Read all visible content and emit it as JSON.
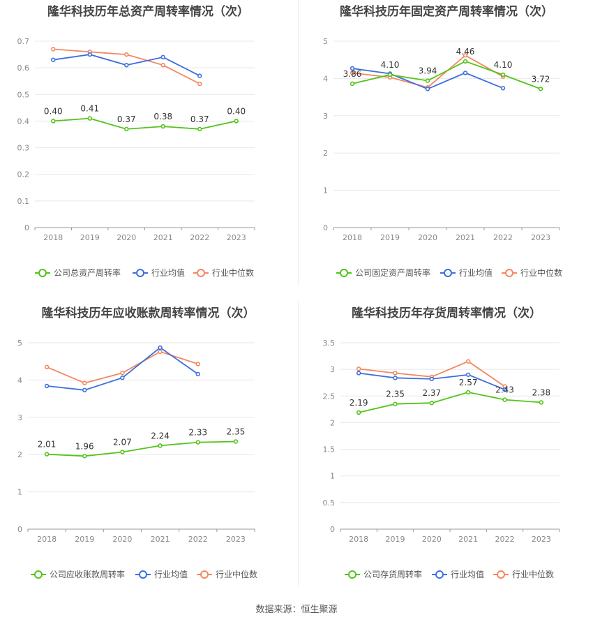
{
  "footer": "数据来源：恒生聚源",
  "colors": {
    "company": "#52c41a",
    "avg": "#3b6fe0",
    "median": "#f5875f",
    "grid": "#e8e8e8",
    "axis": "#888888"
  },
  "chart_data": [
    {
      "type": "line",
      "title": "隆华科技历年总资产周转率情况（次）",
      "categories": [
        "2018",
        "2019",
        "2020",
        "2021",
        "2022",
        "2023"
      ],
      "yticks": [
        "0",
        "0.1",
        "0.2",
        "0.3",
        "0.4",
        "0.5",
        "0.6",
        "0.7"
      ],
      "ylim": [
        0,
        0.7
      ],
      "series": [
        {
          "name": "公司总资产周转率",
          "values": [
            0.4,
            0.41,
            0.37,
            0.38,
            0.37,
            0.4
          ],
          "labels": [
            "0.40",
            "0.41",
            "0.37",
            "0.38",
            "0.37",
            "0.40"
          ]
        },
        {
          "name": "行业均值",
          "values": [
            0.63,
            0.65,
            0.61,
            0.64,
            0.57,
            null
          ]
        },
        {
          "name": "行业中位数",
          "values": [
            0.67,
            0.66,
            0.65,
            0.61,
            0.54,
            null
          ]
        }
      ]
    },
    {
      "type": "line",
      "title": "隆华科技历年固定资产周转率情况（次）",
      "categories": [
        "2018",
        "2019",
        "2020",
        "2021",
        "2022",
        "2023"
      ],
      "yticks": [
        "0",
        "1",
        "2",
        "3",
        "4",
        "5"
      ],
      "ylim": [
        0,
        5
      ],
      "series": [
        {
          "name": "公司固定资产周转率",
          "values": [
            3.86,
            4.1,
            3.94,
            4.46,
            4.1,
            3.72
          ],
          "labels": [
            "3.86",
            "4.10",
            "3.94",
            "4.46",
            "4.10",
            "3.72"
          ]
        },
        {
          "name": "行业均值",
          "values": [
            4.27,
            4.13,
            3.72,
            4.15,
            3.74,
            null
          ]
        },
        {
          "name": "行业中位数",
          "values": [
            4.15,
            4.03,
            3.76,
            4.62,
            4.05,
            null
          ]
        }
      ]
    },
    {
      "type": "line",
      "title": "隆华科技历年应收账款周转率情况（次）",
      "categories": [
        "2018",
        "2019",
        "2020",
        "2021",
        "2022",
        "2023"
      ],
      "yticks": [
        "0",
        "1",
        "2",
        "3",
        "4",
        "5"
      ],
      "ylim": [
        0,
        5
      ],
      "series": [
        {
          "name": "公司应收账款周转率",
          "values": [
            2.01,
            1.96,
            2.07,
            2.24,
            2.33,
            2.35
          ],
          "labels": [
            "2.01",
            "1.96",
            "2.07",
            "2.24",
            "2.33",
            "2.35"
          ]
        },
        {
          "name": "行业均值",
          "values": [
            3.84,
            3.73,
            4.06,
            4.87,
            4.16,
            null
          ]
        },
        {
          "name": "行业中位数",
          "values": [
            4.35,
            3.92,
            4.19,
            4.76,
            4.43,
            null
          ]
        }
      ]
    },
    {
      "type": "line",
      "title": "隆华科技历年存货周转率情况（次）",
      "categories": [
        "2018",
        "2019",
        "2020",
        "2021",
        "2022",
        "2023"
      ],
      "yticks": [
        "0",
        "0.5",
        "1",
        "1.5",
        "2",
        "2.5",
        "3",
        "3.5"
      ],
      "ylim": [
        0,
        3.5
      ],
      "series": [
        {
          "name": "公司存货周转率",
          "values": [
            2.19,
            2.35,
            2.37,
            2.57,
            2.43,
            2.38
          ],
          "labels": [
            "2.19",
            "2.35",
            "2.37",
            "2.57",
            "2.43",
            "2.38"
          ]
        },
        {
          "name": "行业均值",
          "values": [
            2.93,
            2.84,
            2.82,
            2.9,
            2.62,
            null
          ]
        },
        {
          "name": "行业中位数",
          "values": [
            3.01,
            2.93,
            2.86,
            3.15,
            2.68,
            null
          ]
        }
      ]
    }
  ]
}
